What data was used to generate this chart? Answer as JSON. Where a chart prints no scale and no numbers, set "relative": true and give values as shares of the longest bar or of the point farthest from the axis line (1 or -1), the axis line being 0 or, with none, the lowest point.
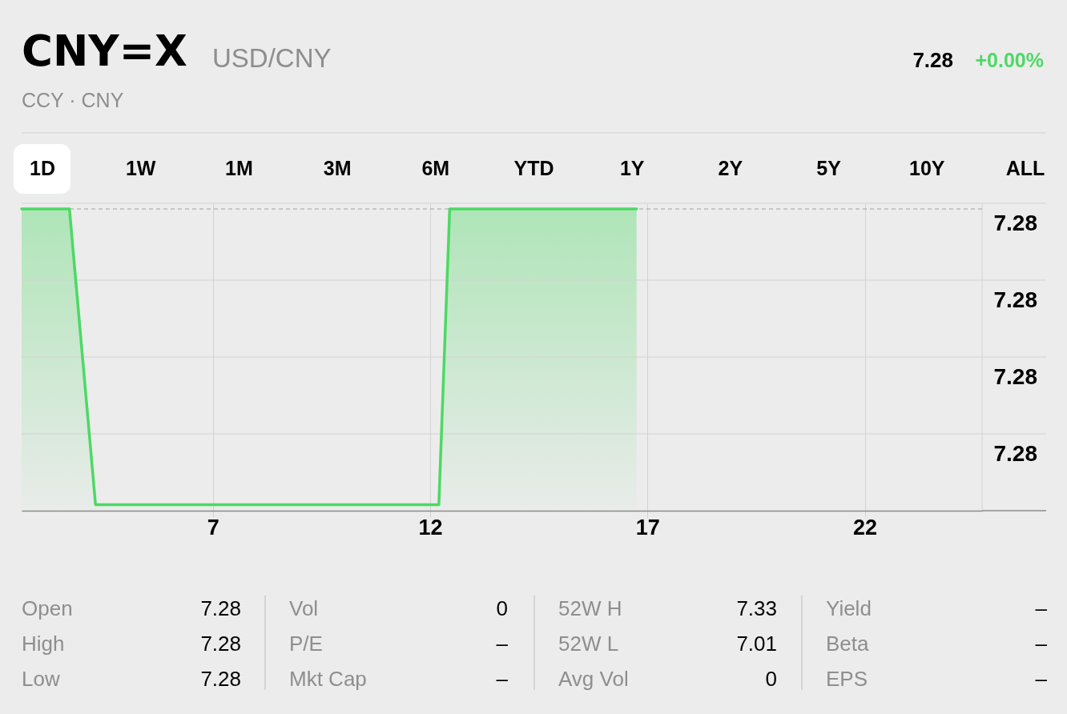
{
  "chart_data": {
    "type": "area",
    "title": "CNY=X",
    "subtitle": "USD/CNY",
    "x": [
      2.6,
      3.7,
      4.3,
      12.2,
      12.45,
      16.75
    ],
    "series": [
      {
        "color": "#4cd964",
        "values": [
          1,
          1,
          0.02,
          0.02,
          1,
          1
        ]
      }
    ],
    "relative": true,
    "xlim": [
      2.6,
      24.7
    ],
    "xticks": [
      7,
      12,
      17,
      22
    ],
    "ref_lines": [
      {
        "axis": "y",
        "value": 1,
        "line_style": "dashed",
        "color": "#a0a0a0"
      }
    ],
    "grid": true,
    "annotations": [
      "CCY · CNY",
      "7.28",
      "+0.00%",
      "1D",
      "1W",
      "1M",
      "3M",
      "6M",
      "YTD",
      "1Y",
      "2Y",
      "5Y",
      "10Y",
      "ALL",
      "Open",
      "7.28",
      "Vol",
      "0",
      "52W H",
      "7.33",
      "Yield",
      "–",
      "High",
      "7.28",
      "P/E",
      "–",
      "52W L",
      "7.01",
      "Beta",
      "–",
      "Low",
      "7.28",
      "Mkt Cap",
      "–",
      "Avg Vol",
      "0",
      "EPS",
      "–",
      "7.28",
      "7.28",
      "7.28",
      "7.28"
    ]
  }
}
